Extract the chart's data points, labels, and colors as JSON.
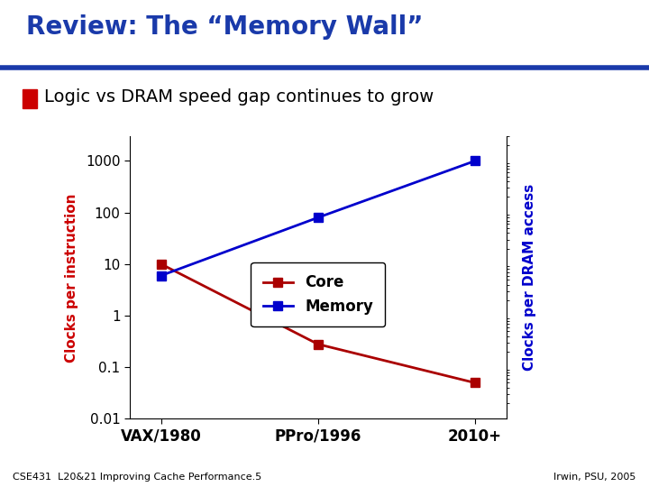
{
  "title": "Review: The “Memory Wall”",
  "subtitle": "Logic vs DRAM speed gap continues to grow",
  "x_labels": [
    "VAX/1980",
    "PPro/1996",
    "2010+"
  ],
  "core_values": [
    10,
    0.28,
    0.05
  ],
  "memory_values": [
    6,
    80,
    1000
  ],
  "core_color": "#aa0000",
  "memory_color": "#0000cc",
  "left_ylabel": "Clocks per instruction",
  "right_ylabel": "Clocks per DRAM access",
  "left_ylabel_color": "#cc0000",
  "right_ylabel_color": "#0000cc",
  "ylim": [
    0.01,
    3000
  ],
  "yticks": [
    0.01,
    0.1,
    1,
    10,
    100,
    1000
  ],
  "ytick_labels": [
    "0.01",
    "0.1",
    "1",
    "10",
    "100",
    "1000"
  ],
  "title_color": "#1a3aaa",
  "title_underline_color": "#1a3aaa",
  "bg_color": "#ffffff",
  "footer_left": "CSE431  L20&21 Improving Cache Performance.5",
  "footer_right": "Irwin, PSU, 2005",
  "legend_core_label": "Core",
  "legend_memory_label": "Memory",
  "title_fontsize": 20,
  "subtitle_fontsize": 14,
  "axis_label_fontsize": 11,
  "tick_fontsize": 11,
  "footer_fontsize": 8,
  "legend_fontsize": 12,
  "bullet_color": "#cc0000"
}
